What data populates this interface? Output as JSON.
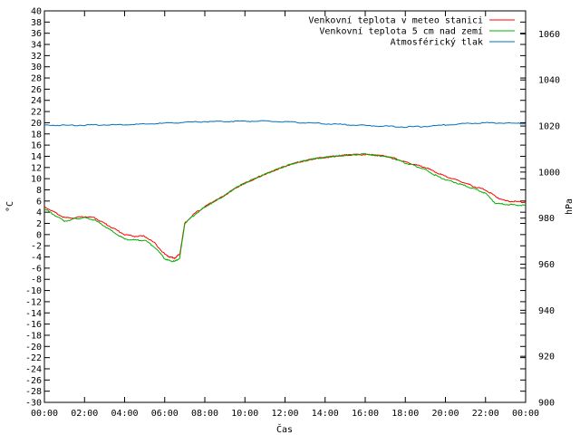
{
  "chart_data": {
    "type": "line",
    "xlabel": "Čas",
    "ylabel": "°C",
    "y2label": "hPa",
    "legend_position": "top-right",
    "x_ticks": [
      "00:00",
      "02:00",
      "04:00",
      "06:00",
      "08:00",
      "10:00",
      "12:00",
      "14:00",
      "16:00",
      "18:00",
      "20:00",
      "22:00",
      "00:00"
    ],
    "xlim_hours": [
      0,
      24
    ],
    "ylim": [
      -30,
      40
    ],
    "y_tick_step": 2,
    "y2lim": [
      900,
      1070
    ],
    "y2_ticks": [
      900,
      920,
      940,
      960,
      980,
      1000,
      1020,
      1040,
      1060
    ],
    "grid": false,
    "series": [
      {
        "name": "Venkovní teplota v meteo stanici",
        "axis": "y",
        "color": "#ff0000",
        "x": [
          0,
          0.5,
          1,
          1.5,
          2,
          2.5,
          3,
          3.5,
          4,
          4.5,
          5,
          5.5,
          6,
          6.25,
          6.5,
          6.75,
          7,
          7.5,
          8,
          8.5,
          9,
          9.5,
          10,
          10.5,
          11,
          11.5,
          12,
          12.5,
          13,
          13.5,
          14,
          14.5,
          15,
          15.5,
          16,
          16.5,
          17,
          17.5,
          18,
          18.5,
          19,
          19.5,
          20,
          20.5,
          21,
          21.5,
          22,
          22.5,
          23,
          23.5,
          24
        ],
        "values": [
          5.0,
          4.0,
          3.0,
          3.0,
          3.2,
          3.0,
          2.0,
          1.0,
          0.0,
          -0.3,
          -0.3,
          -1.5,
          -3.5,
          -4.0,
          -4.2,
          -3.5,
          2.0,
          3.8,
          5.0,
          6.0,
          7.0,
          8.3,
          9.2,
          10.0,
          10.8,
          11.5,
          12.2,
          12.8,
          13.2,
          13.6,
          13.8,
          14.0,
          14.2,
          14.3,
          14.3,
          14.2,
          14.0,
          13.6,
          13.0,
          12.5,
          12.0,
          11.2,
          10.4,
          9.8,
          9.2,
          8.5,
          8.0,
          6.8,
          6.0,
          5.9,
          5.8
        ]
      },
      {
        "name": "Venkovní teplota 5 cm nad zemí",
        "axis": "y",
        "color": "#00b000",
        "x": [
          0,
          0.5,
          1,
          1.5,
          2,
          2.5,
          3,
          3.5,
          4,
          4.5,
          5,
          5.5,
          6,
          6.25,
          6.5,
          6.75,
          7,
          7.5,
          8,
          8.5,
          9,
          9.5,
          10,
          10.5,
          11,
          11.5,
          12,
          12.5,
          13,
          13.5,
          14,
          14.5,
          15,
          15.5,
          16,
          16.5,
          17,
          17.5,
          18,
          18.5,
          19,
          19.5,
          20,
          20.5,
          21,
          21.5,
          22,
          22.5,
          23,
          23.5,
          24
        ],
        "values": [
          4.6,
          3.5,
          2.4,
          2.8,
          3.0,
          2.6,
          1.5,
          0.3,
          -0.8,
          -1.0,
          -1.0,
          -2.2,
          -4.3,
          -4.7,
          -4.8,
          -4.2,
          2.0,
          3.6,
          4.9,
          6.0,
          7.0,
          8.3,
          9.2,
          10.0,
          10.8,
          11.5,
          12.2,
          12.8,
          13.2,
          13.6,
          13.8,
          14.0,
          14.2,
          14.3,
          14.4,
          14.2,
          14.0,
          13.5,
          12.8,
          12.3,
          11.6,
          10.6,
          9.8,
          9.3,
          8.7,
          8.1,
          7.4,
          5.6,
          5.4,
          5.3,
          5.2
        ]
      },
      {
        "name": "Atmosférický tlak",
        "axis": "y2",
        "color": "#0070c0",
        "x": [
          0,
          1,
          2,
          3,
          4,
          5,
          6,
          7,
          8,
          9,
          10,
          11,
          12,
          13,
          14,
          15,
          16,
          17,
          18,
          19,
          20,
          21,
          22,
          23,
          24
        ],
        "values": [
          1020.4,
          1020.3,
          1020.4,
          1020.5,
          1020.6,
          1020.8,
          1021.2,
          1021.6,
          1021.9,
          1022.0,
          1022.1,
          1022.1,
          1021.8,
          1021.4,
          1021.0,
          1020.6,
          1020.2,
          1019.9,
          1019.6,
          1019.8,
          1020.5,
          1021.1,
          1021.4,
          1021.3,
          1021.0
        ]
      }
    ]
  }
}
